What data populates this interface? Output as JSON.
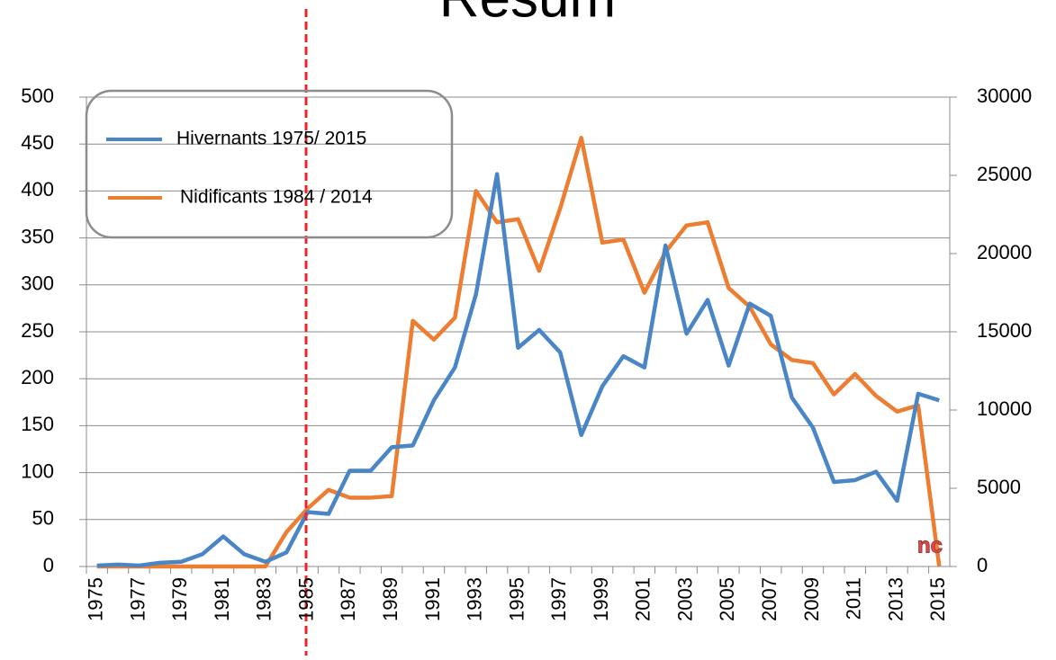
{
  "chart_data": {
    "type": "line",
    "title": "Résum",
    "categories": [
      "1975",
      null,
      "1977",
      null,
      "1979",
      null,
      "1981",
      null,
      "1983",
      null,
      "1985",
      null,
      "1987",
      null,
      "1989",
      null,
      "1991",
      null,
      "1993",
      null,
      "1995",
      null,
      "1997",
      null,
      "1999",
      null,
      "2001",
      null,
      "2003",
      null,
      "2005",
      null,
      "2007",
      null,
      "2009",
      null,
      "2011",
      null,
      "2013",
      null,
      "2015"
    ],
    "series": [
      {
        "name": "Hivernants 1975/ 2015",
        "color": "#4a86c5",
        "axis": "y",
        "values": [
          1,
          2,
          1,
          4,
          5,
          13,
          32,
          13,
          5,
          15,
          58,
          56,
          102,
          102,
          127,
          129,
          177,
          212,
          290,
          418,
          233,
          252,
          228,
          140,
          192,
          224,
          212,
          342,
          248,
          284,
          214,
          280,
          267,
          180,
          148,
          90,
          92,
          101,
          70,
          184,
          177
        ]
      },
      {
        "name": "Nidificants 1984 / 2014",
        "color": "#ed7d31",
        "axis": "y2",
        "values": [
          0,
          0,
          0,
          0,
          0,
          0,
          0,
          0,
          0,
          2200,
          3700,
          4900,
          4400,
          4400,
          4500,
          15700,
          14500,
          15900,
          24000,
          22000,
          22200,
          18900,
          22900,
          27400,
          20700,
          20900,
          17500,
          20100,
          21800,
          22000,
          17800,
          16600,
          14200,
          13200,
          13000,
          11000,
          12300,
          10900,
          9900,
          10300,
          0
        ]
      }
    ],
    "ylim": [
      0,
      500
    ],
    "yticks": [
      0,
      50,
      100,
      150,
      200,
      250,
      300,
      350,
      400,
      450,
      500
    ],
    "y2lim": [
      0,
      30000
    ],
    "y2ticks": [
      0,
      5000,
      10000,
      15000,
      20000,
      25000,
      30000
    ],
    "grid": true,
    "annotation": "nc"
  }
}
